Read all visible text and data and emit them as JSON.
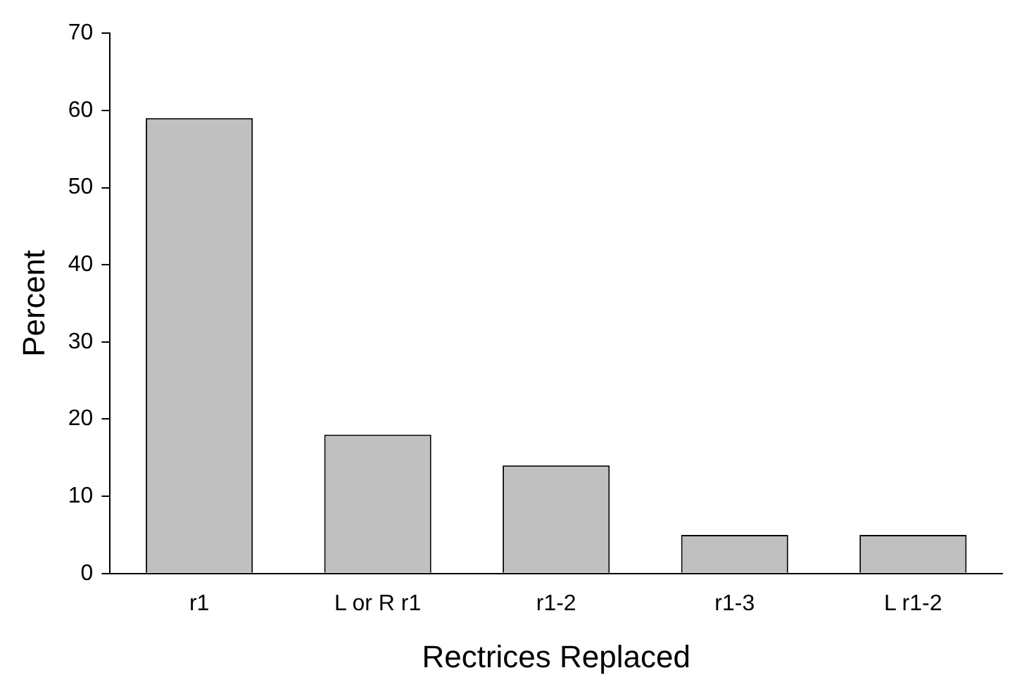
{
  "chart_data": {
    "type": "bar",
    "xlabel": "Rectrices Replaced",
    "ylabel": "Percent",
    "categories": [
      "r1",
      "L or R r1",
      "r1-2",
      "r1-3",
      "L r1-2"
    ],
    "values": [
      59,
      18,
      14,
      5,
      5
    ],
    "color": "#c0c0c0",
    "ylim": [
      0,
      70
    ],
    "yticks": [
      0,
      10,
      20,
      30,
      40,
      50,
      60,
      70
    ],
    "grid": false,
    "legend": false
  }
}
